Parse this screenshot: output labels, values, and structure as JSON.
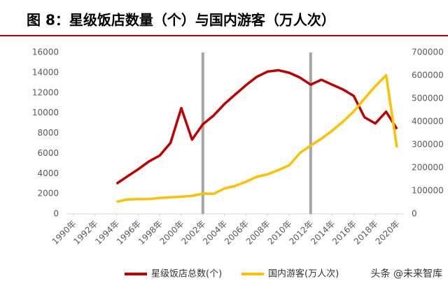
{
  "chart_data": {
    "type": "line",
    "title": "图 8：星级饭店数量（个）与国内游客（万人次）",
    "x": [
      1994,
      1995,
      1996,
      1997,
      1998,
      1999,
      2000,
      2001,
      2002,
      2003,
      2004,
      2005,
      2006,
      2007,
      2008,
      2009,
      2010,
      2011,
      2012,
      2013,
      2014,
      2015,
      2016,
      2017,
      2018,
      2019,
      2020
    ],
    "series": [
      {
        "name": "星级饭店总数(个)",
        "color": "#c00000",
        "values": [
          2995,
          3720,
          4418,
          5201,
          5782,
          7035,
          10481,
          7358,
          8880,
          9751,
          10888,
          11828,
          12751,
          13583,
          14099,
          14237,
          13991,
          13513,
          12807,
          13293,
          12803,
          12327,
          11685,
          9566,
          8962,
          10130,
          8423
        ]
      },
      {
        "name": "国内游客(万人次)",
        "color": "#ffc000",
        "axis": "y2",
        "values": [
          52400,
          62900,
          63900,
          64400,
          69450,
          71900,
          74400,
          78400,
          87800,
          87000,
          110200,
          121200,
          139400,
          161000,
          171200,
          190200,
          210300,
          264100,
          295700,
          326200,
          361100,
          400000,
          444000,
          500100,
          553900,
          601000,
          287900
        ]
      }
    ],
    "xlim": [
      1990,
      2020
    ],
    "xticks": [
      {
        "value": 1990,
        "label": "1990年"
      },
      {
        "value": 1992,
        "label": "1992年"
      },
      {
        "value": 1994,
        "label": "1994年"
      },
      {
        "value": 1996,
        "label": "1996年"
      },
      {
        "value": 1998,
        "label": "1998年"
      },
      {
        "value": 2000,
        "label": "2000年"
      },
      {
        "value": 2002,
        "label": "2002年"
      },
      {
        "value": 2004,
        "label": "2004年"
      },
      {
        "value": 2006,
        "label": "2006年"
      },
      {
        "value": 2008,
        "label": "2008年"
      },
      {
        "value": 2010,
        "label": "2010年"
      },
      {
        "value": 2012,
        "label": "2012年"
      },
      {
        "value": 2014,
        "label": "2014年"
      },
      {
        "value": 2016,
        "label": "2016年"
      },
      {
        "value": 2018,
        "label": "2018年"
      },
      {
        "value": 2020,
        "label": "2020年"
      }
    ],
    "ylim": [
      0,
      16000
    ],
    "yticks": [
      0,
      2000,
      4000,
      6000,
      8000,
      10000,
      12000,
      14000,
      16000
    ],
    "y2lim": [
      0,
      700000
    ],
    "y2ticks": [
      0,
      100000,
      200000,
      300000,
      400000,
      500000,
      600000,
      700000
    ],
    "vlines": [
      2002,
      2012
    ],
    "vline_color": "#a6a6a6",
    "legend": "bottom",
    "watermark": "头条 @未来智库"
  }
}
